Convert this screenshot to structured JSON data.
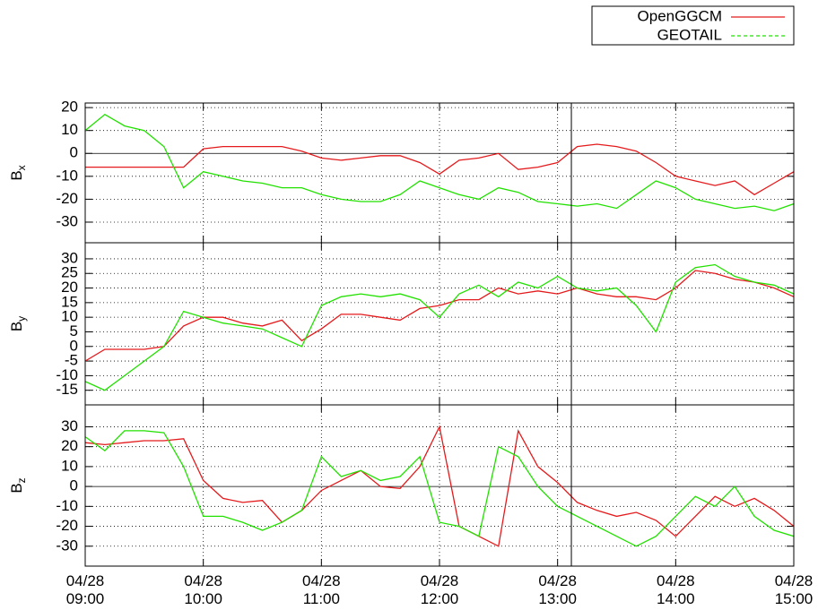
{
  "chart_data": [
    {
      "type": "line",
      "ylabel": "B",
      "ylabel_sub": "x",
      "x": [
        "09:00",
        "09:10",
        "09:20",
        "09:30",
        "09:40",
        "09:50",
        "10:00",
        "10:10",
        "10:20",
        "10:30",
        "10:40",
        "10:50",
        "11:00",
        "11:10",
        "11:20",
        "11:30",
        "11:40",
        "11:50",
        "12:00",
        "12:10",
        "12:20",
        "12:30",
        "12:40",
        "12:50",
        "13:00",
        "13:10",
        "13:20",
        "13:30",
        "13:40",
        "13:50",
        "14:00",
        "14:10",
        "14:20",
        "14:30",
        "14:40",
        "14:50",
        "15:00"
      ],
      "xlim": [
        "09:00",
        "15:00"
      ],
      "xticks": [
        "10:00",
        "11:00",
        "12:00",
        "13:00",
        "14:00"
      ],
      "ylim": [
        -39,
        22
      ],
      "yticks": [
        -30,
        -20,
        -10,
        0,
        10,
        20
      ],
      "grid": true,
      "zero_line": true,
      "vline": "13:07",
      "series": [
        {
          "name": "OpenGGCM",
          "color": "#e41a1c",
          "dash": "solid",
          "values": [
            -6,
            -6,
            -6,
            -6,
            -6,
            -6,
            2,
            3,
            3,
            3,
            3,
            1,
            -2,
            -3,
            -2,
            -1,
            -1,
            -4,
            -9,
            -3,
            -2,
            0,
            -7,
            -6,
            -4,
            3,
            4,
            3,
            1,
            -4,
            -10,
            -12,
            -14,
            -12,
            -18,
            -13,
            -8
          ]
        },
        {
          "name": "GEOTAIL",
          "color": "#22e000",
          "dash": "dashed",
          "values": [
            10,
            17,
            12,
            10,
            3,
            -15,
            -8,
            -10,
            -12,
            -13,
            -15,
            -15,
            -18,
            -20,
            -21,
            -21,
            -18,
            -12,
            -15,
            -18,
            -20,
            -15,
            -17,
            -21,
            -22,
            -23,
            -22,
            -24,
            -18,
            -12,
            -15,
            -20,
            -22,
            -24,
            -23,
            -25,
            -22
          ]
        }
      ]
    },
    {
      "type": "line",
      "ylabel": "B",
      "ylabel_sub": "y",
      "x": [
        "09:00",
        "09:10",
        "09:20",
        "09:30",
        "09:40",
        "09:50",
        "10:00",
        "10:10",
        "10:20",
        "10:30",
        "10:40",
        "10:50",
        "11:00",
        "11:10",
        "11:20",
        "11:30",
        "11:40",
        "11:50",
        "12:00",
        "12:10",
        "12:20",
        "12:30",
        "12:40",
        "12:50",
        "13:00",
        "13:10",
        "13:20",
        "13:30",
        "13:40",
        "13:50",
        "14:00",
        "14:10",
        "14:20",
        "14:30",
        "14:40",
        "14:50",
        "15:00"
      ],
      "xlim": [
        "09:00",
        "15:00"
      ],
      "xticks": [
        "10:00",
        "11:00",
        "12:00",
        "13:00",
        "14:00"
      ],
      "ylim": [
        -20,
        35.5
      ],
      "yticks": [
        -15,
        -10,
        -5,
        0,
        5,
        10,
        15,
        20,
        25,
        30
      ],
      "grid": true,
      "zero_line": false,
      "vline": "13:07",
      "series": [
        {
          "name": "OpenGGCM",
          "color": "#e41a1c",
          "dash": "solid",
          "values": [
            -5,
            -1,
            -1,
            -1,
            0,
            7,
            10,
            10,
            8,
            7,
            9,
            2,
            6,
            11,
            11,
            10,
            9,
            13,
            14,
            16,
            16,
            20,
            18,
            19,
            18,
            20,
            18,
            17,
            17,
            16,
            20,
            26,
            25,
            23,
            22,
            20,
            17
          ]
        },
        {
          "name": "GEOTAIL",
          "color": "#22e000",
          "dash": "dashed",
          "values": [
            -12,
            -15,
            -10,
            -5,
            0,
            12,
            10,
            8,
            7,
            6,
            3,
            0,
            14,
            17,
            18,
            17,
            18,
            16,
            10,
            18,
            21,
            17,
            22,
            20,
            24,
            20,
            19,
            20,
            14,
            5,
            22,
            27,
            28,
            24,
            22,
            21,
            18
          ]
        }
      ]
    },
    {
      "type": "line",
      "ylabel": "B",
      "ylabel_sub": "z",
      "x": [
        "09:00",
        "09:10",
        "09:20",
        "09:30",
        "09:40",
        "09:50",
        "10:00",
        "10:10",
        "10:20",
        "10:30",
        "10:40",
        "10:50",
        "11:00",
        "11:10",
        "11:20",
        "11:30",
        "11:40",
        "11:50",
        "12:00",
        "12:10",
        "12:20",
        "12:30",
        "12:40",
        "12:50",
        "13:00",
        "13:10",
        "13:20",
        "13:30",
        "13:40",
        "13:50",
        "14:00",
        "14:10",
        "14:20",
        "14:30",
        "14:40",
        "14:50",
        "15:00"
      ],
      "xlim": [
        "09:00",
        "15:00"
      ],
      "xticks": [
        {
          "value": "09:00",
          "label": "04/28 09:00"
        },
        {
          "value": "10:00",
          "label": "04/28 10:00"
        },
        {
          "value": "11:00",
          "label": "04/28 11:00"
        },
        {
          "value": "12:00",
          "label": "04/28 12:00"
        },
        {
          "value": "13:00",
          "label": "04/28 13:00"
        },
        {
          "value": "14:00",
          "label": "04/28 14:00"
        },
        {
          "value": "15:00",
          "label": "04/28 15:00"
        }
      ],
      "ylim": [
        -40,
        41
      ],
      "yticks": [
        -30,
        -20,
        -10,
        0,
        10,
        20,
        30
      ],
      "grid": true,
      "zero_line": true,
      "vline": "13:07",
      "series": [
        {
          "name": "OpenGGCM",
          "color": "#e41a1c",
          "dash": "solid",
          "values": [
            22,
            21,
            22,
            23,
            23,
            24,
            3,
            -6,
            -8,
            -7,
            -18,
            -12,
            -2,
            3,
            8,
            0,
            -1,
            10,
            30,
            -20,
            -25,
            -30,
            28,
            10,
            2,
            -8,
            -12,
            -15,
            -13,
            -17,
            -25,
            -15,
            -5,
            -10,
            -6,
            -12,
            -20
          ]
        },
        {
          "name": "GEOTAIL",
          "color": "#22e000",
          "dash": "dashed",
          "values": [
            25,
            18,
            28,
            28,
            27,
            10,
            -15,
            -15,
            -18,
            -22,
            -18,
            -12,
            15,
            5,
            8,
            3,
            5,
            15,
            -18,
            -20,
            -25,
            20,
            15,
            0,
            -10,
            -15,
            -20,
            -25,
            -30,
            -25,
            -15,
            -5,
            -10,
            0,
            -15,
            -22,
            -25
          ]
        }
      ]
    }
  ]
}
